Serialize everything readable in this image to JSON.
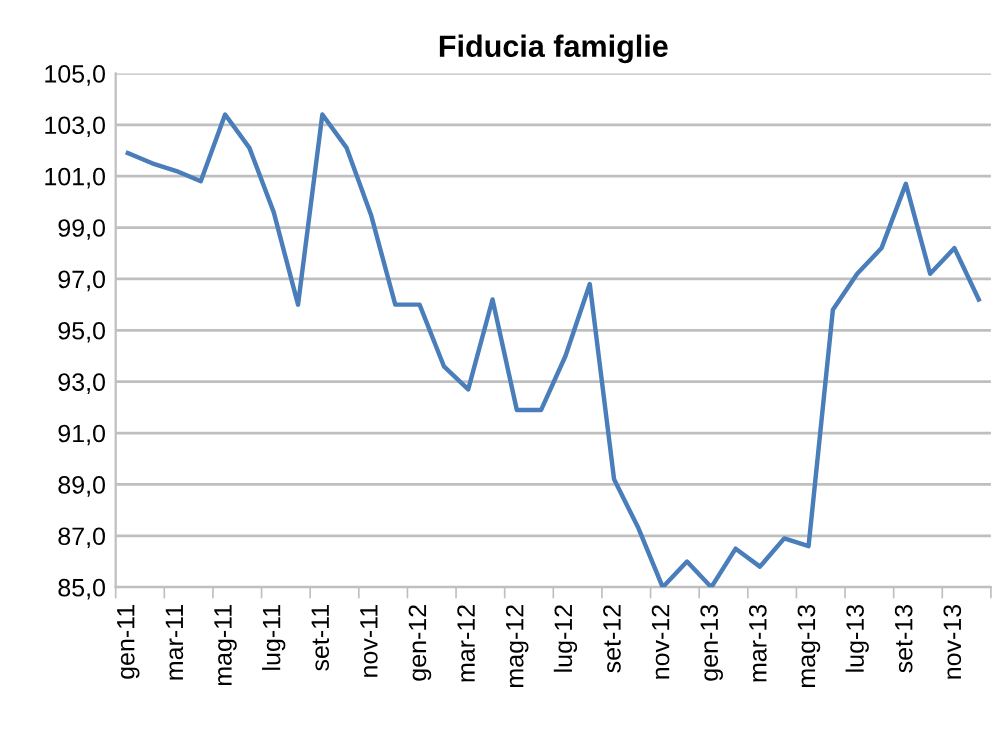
{
  "chart_data": {
    "type": "line",
    "title": "Fiducia famiglie",
    "categories": [
      "gen-11",
      null,
      "mar-11",
      null,
      "mag-11",
      null,
      "lug-11",
      null,
      "set-11",
      null,
      "nov-11",
      null,
      "gen-12",
      null,
      "mar-12",
      null,
      "mag-12",
      null,
      "lug-12",
      null,
      "set-12",
      null,
      "nov-12",
      null,
      "gen-13",
      null,
      "mar-13",
      null,
      "mag-13",
      null,
      "lug-13",
      null,
      "set-13",
      null,
      "nov-13",
      null
    ],
    "series": [
      {
        "color": "#4a7ebb",
        "values": [
          101.9,
          101.5,
          101.2,
          100.8,
          103.4,
          102.1,
          99.6,
          96.0,
          103.4,
          102.1,
          99.5,
          96.0,
          96.0,
          93.6,
          92.7,
          96.2,
          91.9,
          91.9,
          94.0,
          96.8,
          89.2,
          87.3,
          85.0,
          86.0,
          85.0,
          86.5,
          85.8,
          86.9,
          86.6,
          95.8,
          97.2,
          98.2,
          100.7,
          97.2,
          98.2,
          96.2
        ]
      }
    ],
    "ylim": [
      85,
      105
    ],
    "yticks": [
      {
        "value": 85,
        "label": "85,0"
      },
      {
        "value": 87,
        "label": "87,0"
      },
      {
        "value": 89,
        "label": "89,0"
      },
      {
        "value": 91,
        "label": "91,0"
      },
      {
        "value": 93,
        "label": "93,0"
      },
      {
        "value": 95,
        "label": "95,0"
      },
      {
        "value": 97,
        "label": "97,0"
      },
      {
        "value": 99,
        "label": "99,0"
      },
      {
        "value": 101,
        "label": "101,0"
      },
      {
        "value": 103,
        "label": "103,0"
      },
      {
        "value": 105,
        "label": "105,0"
      }
    ],
    "grid": "y",
    "legend": false,
    "marker": "none",
    "line_style": "solid"
  }
}
